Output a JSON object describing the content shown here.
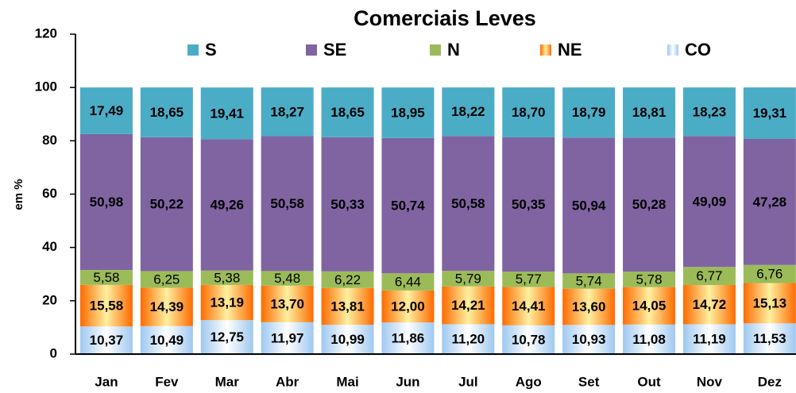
{
  "chart_data": {
    "type": "stacked_bar",
    "title": "Comerciais Leves",
    "y_label": "em %",
    "categories": [
      "Jan",
      "Fev",
      "Mar",
      "Abr",
      "Mai",
      "Jun",
      "Jul",
      "Ago",
      "Set",
      "Out",
      "Nov",
      "Dez"
    ],
    "ylim": [
      0,
      120
    ],
    "yticks": [
      0,
      20,
      40,
      60,
      80,
      100,
      120
    ],
    "series": [
      {
        "name": "CO",
        "color": "#9ec8f0",
        "values": [
          10.37,
          10.49,
          12.75,
          11.97,
          10.99,
          11.86,
          11.2,
          10.78,
          10.93,
          11.08,
          11.19,
          11.53
        ],
        "value_labels": [
          "10,37",
          "10,49",
          "12,75",
          "11,97",
          "10,99",
          "11,86",
          "11,20",
          "10,78",
          "10,93",
          "11,08",
          "11,19",
          "11,53"
        ]
      },
      {
        "name": "NE",
        "color": "#ff6a00",
        "values": [
          15.58,
          14.39,
          13.19,
          13.7,
          13.81,
          12.0,
          14.21,
          14.41,
          13.6,
          14.05,
          14.72,
          15.13
        ],
        "value_labels": [
          "15,58",
          "14,39",
          "13,19",
          "13,70",
          "13,81",
          "12,00",
          "14,21",
          "14,41",
          "13,60",
          "14,05",
          "14,72",
          "15,13"
        ]
      },
      {
        "name": "N",
        "color": "#9bbb59",
        "values": [
          5.58,
          6.25,
          5.38,
          5.48,
          6.22,
          6.44,
          5.79,
          5.77,
          5.74,
          5.78,
          6.77,
          6.76
        ],
        "value_labels": [
          "5,58",
          "6,25",
          "5,38",
          "5,48",
          "6,22",
          "6,44",
          "5,79",
          "5,77",
          "5,74",
          "5,78",
          "6,77",
          "6,76"
        ]
      },
      {
        "name": "SE",
        "color": "#8064a2",
        "values": [
          50.98,
          50.22,
          49.26,
          50.58,
          50.33,
          50.74,
          50.58,
          50.35,
          50.94,
          50.28,
          49.09,
          47.28
        ],
        "value_labels": [
          "50,98",
          "50,22",
          "49,26",
          "50,58",
          "50,33",
          "50,74",
          "50,58",
          "50,35",
          "50,94",
          "50,28",
          "49,09",
          "47,28"
        ]
      },
      {
        "name": "S",
        "color": "#4bacc6",
        "values": [
          17.49,
          18.65,
          19.41,
          18.27,
          18.65,
          18.95,
          18.22,
          18.7,
          18.79,
          18.81,
          18.23,
          19.31
        ],
        "value_labels": [
          "17,49",
          "18,65",
          "19,41",
          "18,27",
          "18,65",
          "18,95",
          "18,22",
          "18,70",
          "18,79",
          "18,81",
          "18,23",
          "19,31"
        ]
      }
    ]
  }
}
